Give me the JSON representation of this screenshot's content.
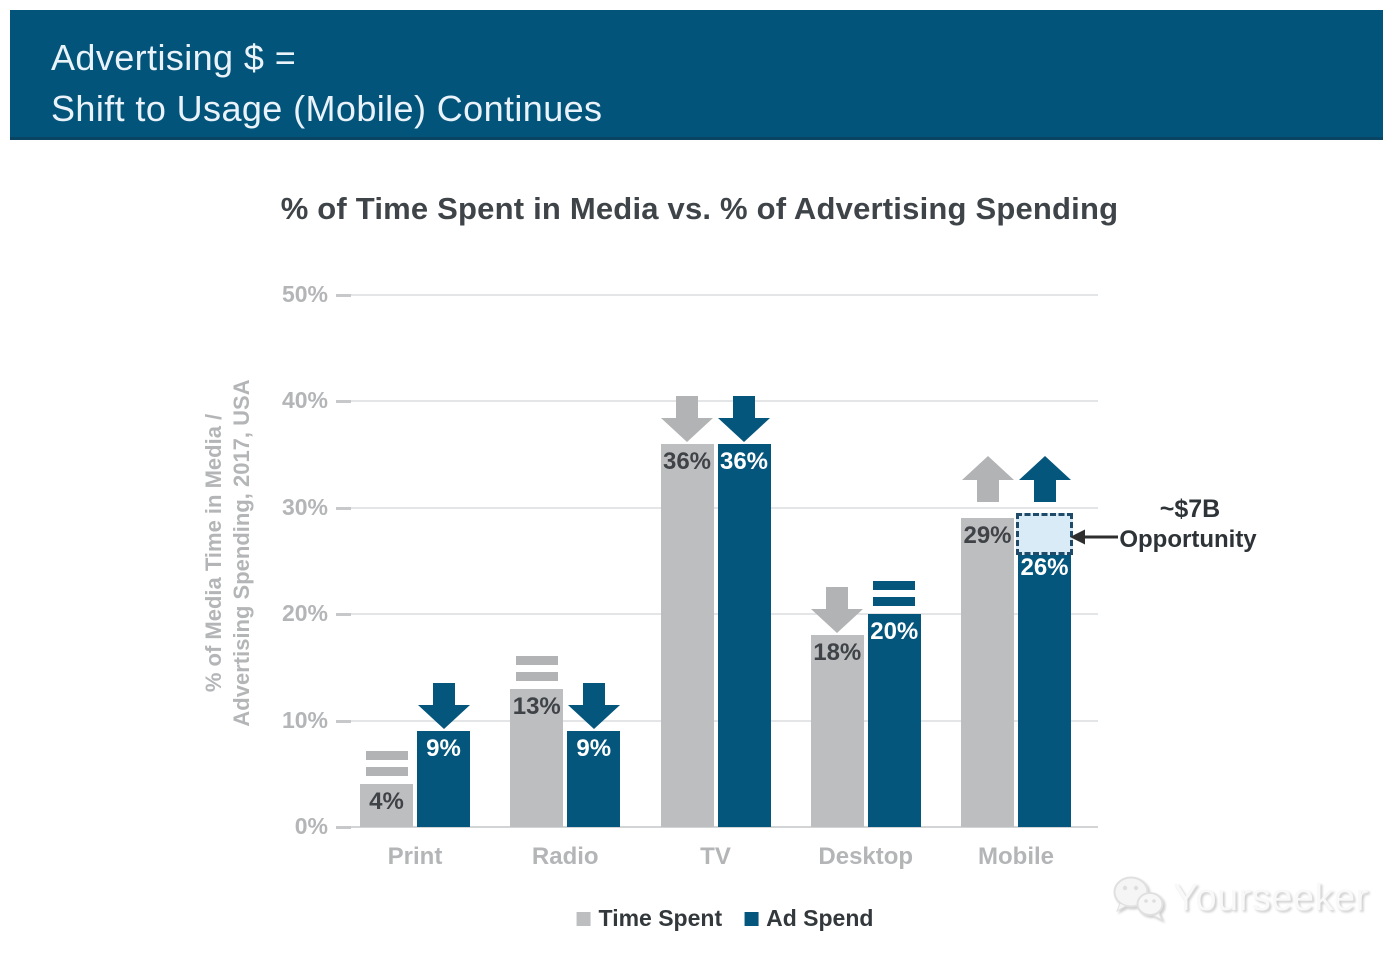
{
  "banner": {
    "title_line1": "Advertising $ =",
    "title_line2": "Shift to Usage (Mobile) Continues"
  },
  "chart_data": {
    "type": "bar",
    "title": "% of Time Spent in Media vs. % of Advertising Spending",
    "ylabel": "% of Media Time in Media / Advertising Spending, 2017, USA",
    "ylabel_lines": [
      "% of Media Time in Media /",
      "Advertising Spending, 2017, USA"
    ],
    "categories": [
      "Print",
      "Radio",
      "TV",
      "Desktop",
      "Mobile"
    ],
    "series": [
      {
        "name": "Time Spent",
        "color": "#bdbebf",
        "marker_color": "#b1b3b5",
        "label_color": "#3f4347",
        "values": [
          4,
          13,
          36,
          18,
          29
        ],
        "value_labels": [
          "4%",
          "13%",
          "36%",
          "18%",
          "29%"
        ],
        "trends": [
          "equal",
          "equal",
          "down",
          "down",
          "up"
        ]
      },
      {
        "name": "Ad Spend",
        "color": "#04567d",
        "marker_color": "#04567d",
        "label_color": "#ffffff",
        "values": [
          9,
          9,
          36,
          20,
          26
        ],
        "value_labels": [
          "9%",
          "9%",
          "36%",
          "20%",
          "26%"
        ],
        "trends": [
          "down",
          "down",
          "down",
          "equal",
          "up"
        ]
      }
    ],
    "ylim": [
      0,
      50
    ],
    "ytick_labels": [
      "0%",
      "10%",
      "20%",
      "30%",
      "40%",
      "50%"
    ],
    "grid": true,
    "legend_position": "bottom",
    "annotation": {
      "label_line1": "~$7B",
      "label_line2": "Opportunity",
      "category": "Mobile",
      "series": "Ad Spend",
      "gap_from": 26,
      "gap_to": 29,
      "box_fill": "#d9ebf7",
      "box_border": "#1f4b69"
    }
  },
  "watermark": {
    "text": "Yourseeker",
    "icon": "wechat-icon"
  },
  "colors": {
    "banner_bg": "#03547a",
    "banner_text": "#eaf3f9",
    "bar_gray": "#bdbebf",
    "bar_blue": "#04567d",
    "axis_text": "#b3b5b7",
    "title_text": "#3f4449"
  }
}
